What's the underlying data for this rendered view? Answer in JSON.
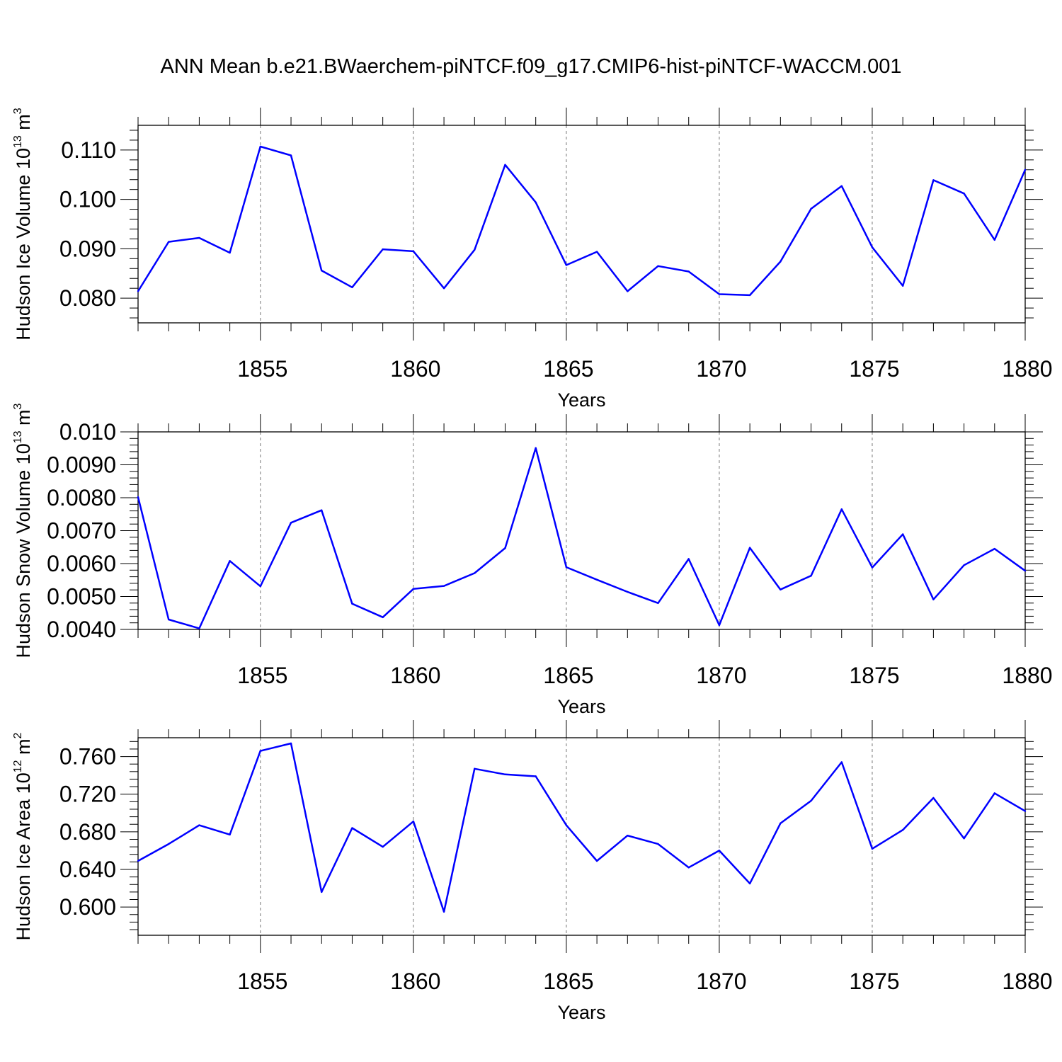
{
  "title": "ANN Mean b.e21.BWaerchem-piNTCF.f09_g17.CMIP6-hist-piNTCF-WACCM.001",
  "chart_data": [
    {
      "type": "line",
      "title": "",
      "xlabel": "Years",
      "ylabel": {
        "prefix": "Hudson Ice Volume 10",
        "exp": "13",
        "unit": " m",
        "unit_exp": "3"
      },
      "xlim": [
        1851,
        1880
      ],
      "ylim": [
        0.075,
        0.115
      ],
      "yticks": [
        0.08,
        0.09,
        0.1,
        0.11
      ],
      "ytick_labels": [
        "0.080",
        "0.090",
        "0.100",
        "0.110"
      ],
      "xticks": [
        1855,
        1860,
        1865,
        1870,
        1875,
        1880
      ],
      "xtick_labels": [
        "1855",
        "1860",
        "1865",
        "1870",
        "1875",
        "1880"
      ],
      "grid": "vertical dashed at major x ticks",
      "line_color": "#0000ff",
      "x": [
        1851,
        1852,
        1853,
        1854,
        1855,
        1856,
        1857,
        1858,
        1859,
        1860,
        1861,
        1862,
        1863,
        1864,
        1865,
        1866,
        1867,
        1868,
        1869,
        1870,
        1871,
        1872,
        1873,
        1874,
        1875,
        1876,
        1877,
        1878,
        1879,
        1880
      ],
      "values": [
        0.0814,
        0.0914,
        0.0922,
        0.0892,
        0.1107,
        0.1089,
        0.0856,
        0.0822,
        0.0899,
        0.0895,
        0.082,
        0.0898,
        0.107,
        0.0994,
        0.0867,
        0.0894,
        0.0814,
        0.0865,
        0.0854,
        0.0808,
        0.0806,
        0.0874,
        0.0981,
        0.1027,
        0.0903,
        0.0825,
        0.1039,
        0.1012,
        0.0918,
        0.106
      ]
    },
    {
      "type": "line",
      "title": "",
      "xlabel": "Years",
      "ylabel": {
        "prefix": "Hudson Snow Volume 10",
        "exp": "13",
        "unit": " m",
        "unit_exp": "3"
      },
      "xlim": [
        1851,
        1880
      ],
      "ylim": [
        0.004,
        0.01
      ],
      "yticks": [
        0.004,
        0.005,
        0.006,
        0.007,
        0.008,
        0.009,
        0.01
      ],
      "ytick_labels": [
        "0.0040",
        "0.0050",
        "0.0060",
        "0.0070",
        "0.0080",
        "0.0090",
        "0.010"
      ],
      "xticks": [
        1855,
        1860,
        1865,
        1870,
        1875,
        1880
      ],
      "xtick_labels": [
        "1855",
        "1860",
        "1865",
        "1870",
        "1875",
        "1880"
      ],
      "grid": "vertical dashed at major x ticks",
      "line_color": "#0000ff",
      "x": [
        1851,
        1852,
        1853,
        1854,
        1855,
        1856,
        1857,
        1858,
        1859,
        1860,
        1861,
        1862,
        1863,
        1864,
        1865,
        1866,
        1867,
        1868,
        1869,
        1870,
        1871,
        1872,
        1873,
        1874,
        1875,
        1876,
        1877,
        1878,
        1879,
        1880
      ],
      "values": [
        0.00802,
        0.0043,
        0.00403,
        0.00608,
        0.00531,
        0.00724,
        0.00762,
        0.00478,
        0.00437,
        0.00523,
        0.00532,
        0.00571,
        0.00647,
        0.00951,
        0.00589,
        0.00551,
        0.00514,
        0.0048,
        0.00614,
        0.00413,
        0.00648,
        0.00521,
        0.00563,
        0.00765,
        0.00588,
        0.00689,
        0.00491,
        0.00595,
        0.00645,
        0.00578
      ]
    },
    {
      "type": "line",
      "title": "",
      "xlabel": "Years",
      "ylabel": {
        "prefix": "Hudson Ice Area 10",
        "exp": "12",
        "unit": " m",
        "unit_exp": "2"
      },
      "xlim": [
        1851,
        1880
      ],
      "ylim": [
        0.57,
        0.78
      ],
      "yticks": [
        0.6,
        0.64,
        0.68,
        0.72,
        0.76
      ],
      "ytick_labels": [
        "0.600",
        "0.640",
        "0.680",
        "0.720",
        "0.760"
      ],
      "xticks": [
        1855,
        1860,
        1865,
        1870,
        1875,
        1880
      ],
      "xtick_labels": [
        "1855",
        "1860",
        "1865",
        "1870",
        "1875",
        "1880"
      ],
      "grid": "vertical dashed at major x ticks",
      "line_color": "#0000ff",
      "x": [
        1851,
        1852,
        1853,
        1854,
        1855,
        1856,
        1857,
        1858,
        1859,
        1860,
        1861,
        1862,
        1863,
        1864,
        1865,
        1866,
        1867,
        1868,
        1869,
        1870,
        1871,
        1872,
        1873,
        1874,
        1875,
        1876,
        1877,
        1878,
        1879,
        1880
      ],
      "values": [
        0.649,
        0.667,
        0.687,
        0.677,
        0.766,
        0.774,
        0.616,
        0.684,
        0.664,
        0.691,
        0.595,
        0.747,
        0.741,
        0.739,
        0.687,
        0.649,
        0.676,
        0.667,
        0.642,
        0.66,
        0.625,
        0.689,
        0.713,
        0.754,
        0.662,
        0.682,
        0.716,
        0.673,
        0.721,
        0.702
      ]
    }
  ]
}
